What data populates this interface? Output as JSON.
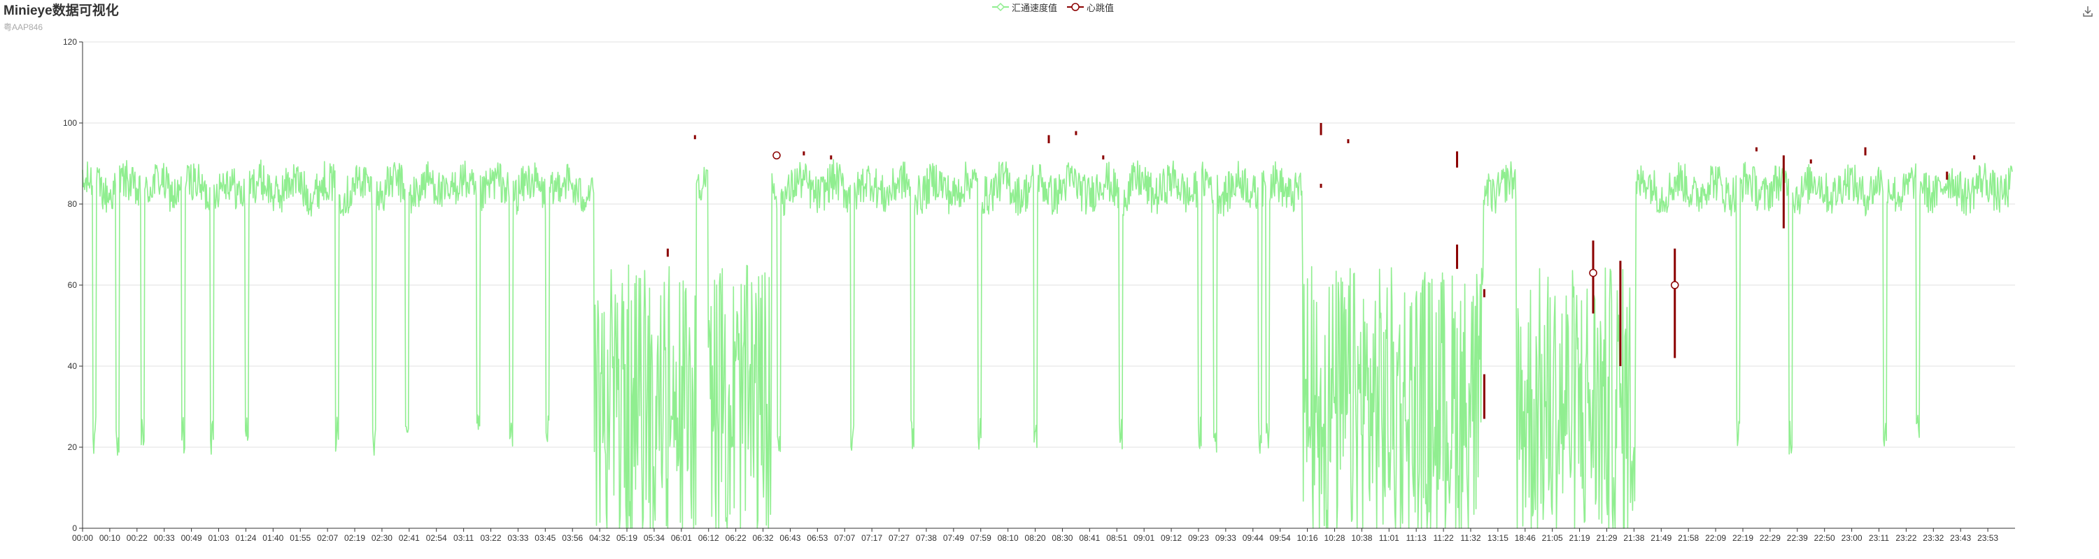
{
  "header": {
    "title": "Minieye数据可视化",
    "subtitle": "粤AAP846"
  },
  "toolbar": {
    "save_icon": "download-icon"
  },
  "legend": [
    {
      "name": "汇通速度值",
      "color": "#90ee90",
      "symbol": "diamond"
    },
    {
      "name": "心跳值",
      "color": "#8b0000",
      "symbol": "circle"
    }
  ],
  "chart_data": {
    "type": "line",
    "title": "Minieye数据可视化",
    "subtitle": "粤AAP846",
    "xlabel": "",
    "ylabel": "",
    "ylim": [
      0,
      120
    ],
    "yticks": [
      0,
      20,
      40,
      60,
      80,
      100,
      120
    ],
    "grid": true,
    "legend_position": "top-center",
    "x_tick_labels": [
      "00:00",
      "00:10",
      "00:22",
      "00:33",
      "00:49",
      "01:03",
      "01:24",
      "01:40",
      "01:55",
      "02:07",
      "02:19",
      "02:30",
      "02:41",
      "02:54",
      "03:11",
      "03:22",
      "03:33",
      "03:45",
      "03:56",
      "04:32",
      "05:19",
      "05:34",
      "06:01",
      "06:12",
      "06:22",
      "06:32",
      "06:43",
      "06:53",
      "07:07",
      "07:17",
      "07:27",
      "07:38",
      "07:49",
      "07:59",
      "08:10",
      "08:20",
      "08:30",
      "08:41",
      "08:51",
      "09:01",
      "09:12",
      "09:23",
      "09:33",
      "09:44",
      "09:54",
      "10:16",
      "10:28",
      "10:38",
      "11:01",
      "11:13",
      "11:22",
      "11:32",
      "13:15",
      "18:46",
      "21:05",
      "21:19",
      "21:29",
      "21:38",
      "21:49",
      "21:58",
      "22:09",
      "22:19",
      "22:29",
      "22:39",
      "22:50",
      "23:00",
      "23:11",
      "23:22",
      "23:32",
      "23:43",
      "23:53"
    ],
    "series": [
      {
        "name": "汇通速度值",
        "color": "#90ee90",
        "typical_range": [
          78,
          90
        ],
        "x_range": [
          "00:00",
          "23:59"
        ]
      },
      {
        "name": "心跳值",
        "color": "#8b0000",
        "circle_markers": [
          {
            "x": "06:32",
            "y": 92
          },
          {
            "x": "21:19",
            "y": 63
          },
          {
            "x": "21:49",
            "y": 60
          }
        ],
        "segments": [
          {
            "x": "05:34",
            "y1": 67,
            "y2": 69
          },
          {
            "x": "06:01",
            "y1": 96,
            "y2": 97
          },
          {
            "x": "06:43",
            "y1": 92,
            "y2": 93
          },
          {
            "x": "06:53",
            "y1": 91,
            "y2": 92
          },
          {
            "x": "08:20",
            "y1": 95,
            "y2": 97
          },
          {
            "x": "08:30",
            "y1": 97,
            "y2": 98
          },
          {
            "x": "08:41",
            "y1": 91,
            "y2": 92
          },
          {
            "x": "10:16",
            "y1": 97,
            "y2": 100
          },
          {
            "x": "10:16",
            "y1": 84,
            "y2": 85
          },
          {
            "x": "10:28",
            "y1": 95,
            "y2": 96
          },
          {
            "x": "11:22",
            "y1": 89,
            "y2": 93
          },
          {
            "x": "11:22",
            "y1": 64,
            "y2": 70
          },
          {
            "x": "11:32",
            "y1": 27,
            "y2": 38
          },
          {
            "x": "11:32",
            "y1": 57,
            "y2": 59
          },
          {
            "x": "21:19",
            "y1": 53,
            "y2": 71
          },
          {
            "x": "21:29",
            "y1": 40,
            "y2": 66
          },
          {
            "x": "21:49",
            "y1": 42,
            "y2": 69
          },
          {
            "x": "22:19",
            "y1": 93,
            "y2": 94
          },
          {
            "x": "22:29",
            "y1": 74,
            "y2": 92
          },
          {
            "x": "22:39",
            "y1": 90,
            "y2": 91
          },
          {
            "x": "23:00",
            "y1": 92,
            "y2": 94
          },
          {
            "x": "23:32",
            "y1": 86,
            "y2": 88
          },
          {
            "x": "23:43",
            "y1": 91,
            "y2": 92
          }
        ]
      }
    ]
  }
}
